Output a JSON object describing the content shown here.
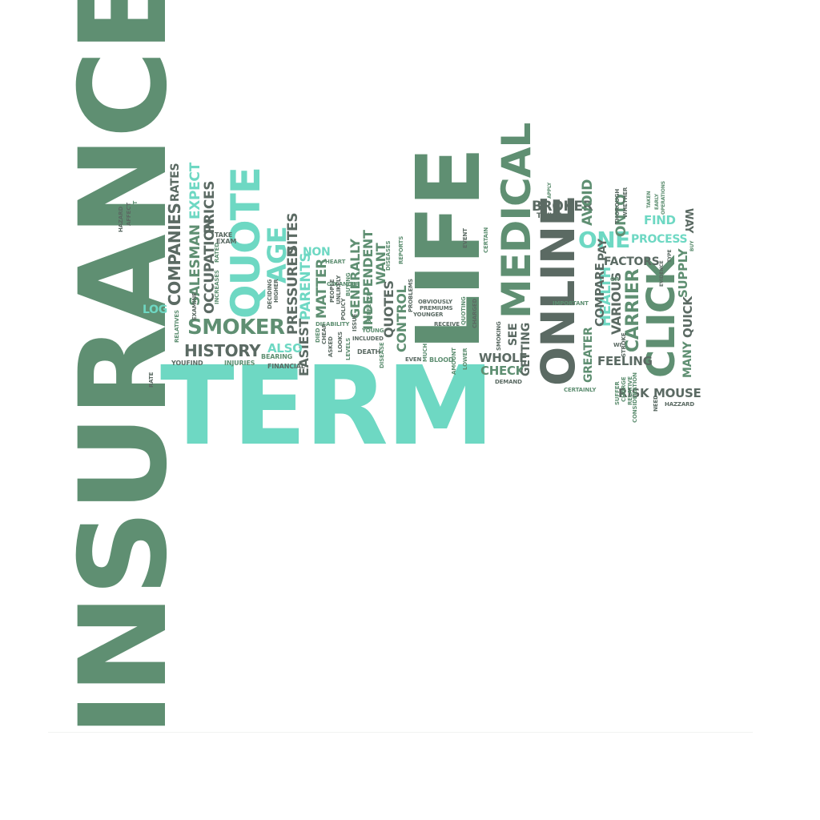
{
  "colors": {
    "background": "#ffffff",
    "green": "#5f8f72",
    "teal": "#6ed8c3",
    "dark": "#5b6a63",
    "light_green": "#85b89a",
    "light_teal": "#6fd0c0"
  },
  "words": {
    "insurance": "INSURANCE",
    "term": "TERM",
    "life": "LIFE",
    "online": "ONLINE",
    "medical": "MEDICAL",
    "click": "CLICK",
    "quote": "QUOTE",
    "smoker": "SMOKER",
    "history": "HISTORY",
    "age": "AGE",
    "one": "ONE",
    "companies": "COMPANIES",
    "salesman": "SALESMAN",
    "occupation": "OCCUPATION",
    "prices": "PRICES",
    "expect": "EXPECT",
    "rates": "RATES",
    "log": "LOG",
    "pressured": "PRESSURED",
    "sites": "SITES",
    "parents": "PARENTS",
    "easiest": "EASIEST",
    "matter": "MATTER",
    "non": "NON",
    "also": "ALSO",
    "generally": "GENERALLY",
    "independent": "INDEPENDENT",
    "want": "WANT",
    "quotes": "QUOTES",
    "control": "CONTROL",
    "broker": "BROKER",
    "avoid": "AVOID",
    "onto": "ONTO",
    "find": "FIND",
    "way": "WAY",
    "process": "PROCESS",
    "factors": "FACTORS",
    "supply": "SUPPLY",
    "carrier": "CARRIER",
    "health": "HEALTH",
    "various": "VARIOUS",
    "compare": "COMPARE",
    "pay": "PAY",
    "greater": "GREATER",
    "whole": "WHOLE",
    "check": "CHECK",
    "getting": "GETTING",
    "see": "SEE",
    "feeling": "FEELING",
    "risk": "RISK",
    "mouse": "MOUSE",
    "quick": "QUICK",
    "many": "MANY",
    "twice": "TWICE",
    "hazard": "HAZARD",
    "affect": "AFFECT",
    "past": "PAST",
    "examine": "EXAMINE",
    "rated": "RATED",
    "take": "TAKE",
    "exam": "EXAM",
    "increases": "INCREASES",
    "relatives": "RELATIVES",
    "youfind": "YOUFIND",
    "injuries": "INJURIES",
    "bearing": "BEARING",
    "financial": "FINANCIAL",
    "rate": "RATE",
    "deciding": "DECIDING",
    "higher": "HIGHER",
    "died": "DIED",
    "cheap": "CHEAP",
    "asked": "ASKED",
    "go": "GO",
    "cancer": "CANCER",
    "heart": "HEART",
    "people": "PEOPLE",
    "unlikely": "UNLIKELY",
    "disability": "DISABILITY",
    "looks": "LOOKS",
    "policy": "POLICY",
    "levels": "LEVELS",
    "buying": "BUYING",
    "issue": "ISSUE",
    "included": "INCLUDED",
    "suffered": "SUFFERED",
    "young": "YOUNG",
    "death": "DEATH",
    "diseases": "DISEASES",
    "disease": "DISEASE",
    "reports": "REPORTS",
    "problems": "PROBLEMS",
    "even": "EVEN",
    "much": "MUCH",
    "obviously": "OBVIOUSLY",
    "premiums": "PREMIUMS",
    "younger": "YOUNGER",
    "receive": "RECEIVE",
    "blood": "BLOOD",
    "event": "EVENT",
    "quoting": "QUOTING",
    "charged": "CHARGED",
    "amount": "AMOUNT",
    "lower": "LOWER",
    "certain": "CERTAIN",
    "smoking": "SMOKING",
    "demand": "DEMAND",
    "apply": "APPLY",
    "important": "IMPORTANT",
    "certainly": "CERTAINLY",
    "whether": "WHETHER",
    "thorough": "THOROUGH",
    "stroke": "STROKE",
    "or": "OR",
    "wi": "WI",
    "suffer": "SUFFER",
    "charge": "CHARGE",
    "relative": "RELATIVE",
    "consideration": "CONSIDERATION",
    "taken": "TAKEN",
    "early": "EARLY",
    "operations": "OPERATIONS",
    "type": "TYPE",
    "evidence": "EVIDENCE",
    "buy": "BUY",
    "need": "NEED",
    "hazzard": "HAZZARD"
  }
}
